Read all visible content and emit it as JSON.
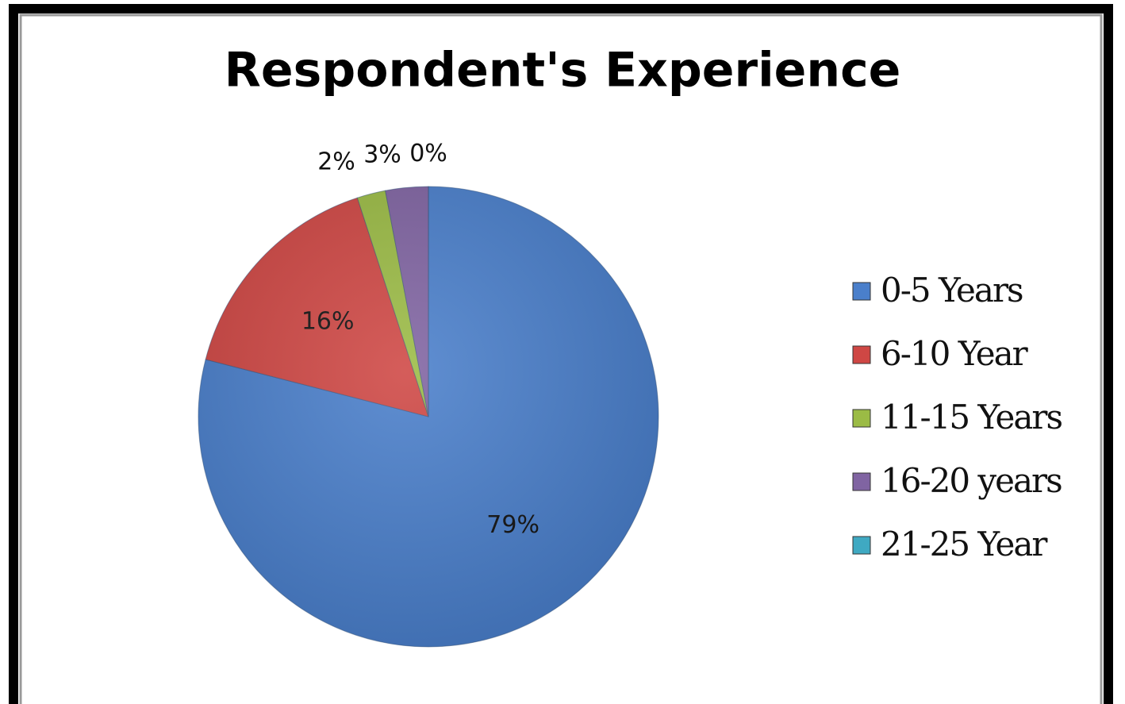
{
  "chart_data": {
    "type": "pie",
    "title": "Respondent's Experience",
    "categories": [
      "0-5 Years",
      "6-10 Year",
      "11-15 Years",
      "16-20 years",
      "21-25 Year"
    ],
    "values": [
      79,
      16,
      2,
      3,
      0
    ],
    "value_labels": [
      "79%",
      "16%",
      "2%",
      "3%",
      "0%"
    ],
    "colors": [
      "#4a7fcb",
      "#cf4744",
      "#9bbb45",
      "#8064a2",
      "#3fa9c2"
    ],
    "legend": "right"
  }
}
